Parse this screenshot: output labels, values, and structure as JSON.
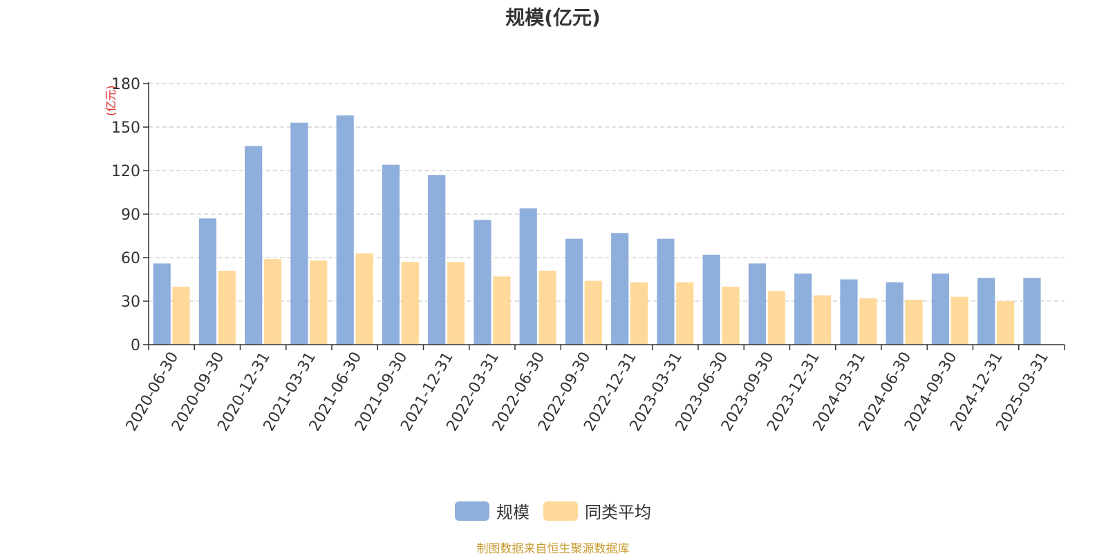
{
  "title": "规模(亿元)",
  "source_note": "制图数据来自恒生聚源数据库",
  "colors": {
    "scale": "#8eaedb",
    "average": "#ffd999",
    "axis": "#333333",
    "grid": "#cccccc",
    "unit": "#e02020"
  },
  "chart_data": {
    "type": "bar",
    "title": "规模(亿元)",
    "ylabel": "(亿元)",
    "ylim": [
      0,
      180
    ],
    "yticks": [
      0,
      30,
      60,
      90,
      120,
      150,
      180
    ],
    "grid": true,
    "legend_position": "bottom-center",
    "categories": [
      "2020-06-30",
      "2020-09-30",
      "2020-12-31",
      "2021-03-31",
      "2021-06-30",
      "2021-09-30",
      "2021-12-31",
      "2022-03-31",
      "2022-06-30",
      "2022-09-30",
      "2022-12-31",
      "2023-03-31",
      "2023-06-30",
      "2023-09-30",
      "2023-12-31",
      "2024-03-31",
      "2024-06-30",
      "2024-09-30",
      "2024-12-31",
      "2025-03-31"
    ],
    "series": [
      {
        "name": "规模",
        "values": [
          56,
          87,
          137,
          153,
          158,
          124,
          117,
          86,
          94,
          73,
          77,
          73,
          62,
          56,
          49,
          45,
          43,
          49,
          46,
          46
        ]
      },
      {
        "name": "同类平均",
        "values": [
          40,
          51,
          59,
          58,
          63,
          57,
          57,
          47,
          51,
          44,
          43,
          43,
          40,
          37,
          34,
          32,
          31,
          33,
          30,
          null
        ]
      }
    ]
  }
}
